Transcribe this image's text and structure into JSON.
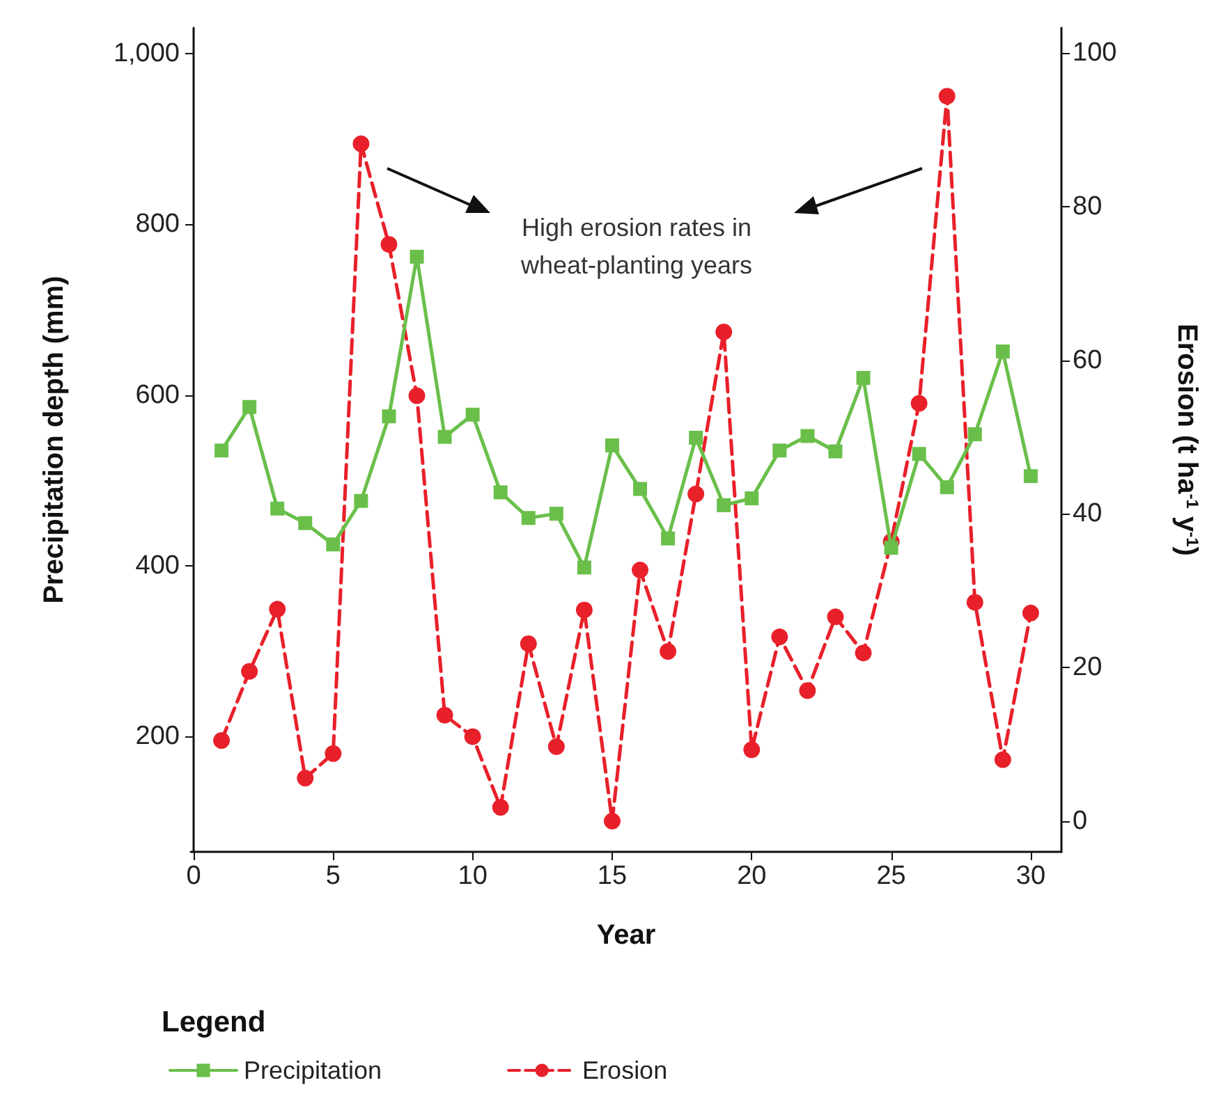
{
  "chart_data": {
    "type": "line",
    "xlabel": "Year",
    "ylabel": "Precipitation depth (mm)",
    "y2label": "Erosion (t ha$^{-1}$ y$^{-1}$)",
    "legend_title": "Legend",
    "legend": "bottom",
    "annotations": [
      "High erosion rates in\nwheat-planting years"
    ],
    "x": [
      1,
      2,
      3,
      4,
      5,
      6,
      7,
      8,
      9,
      10,
      11,
      12,
      13,
      14,
      15,
      16,
      17,
      18,
      19,
      20,
      21,
      22,
      23,
      24,
      25,
      26,
      27,
      28,
      29,
      30
    ],
    "series": [
      {
        "name": "Precipitation",
        "color": "#6abf4b",
        "marker": "square",
        "line_style": "solid",
        "values": [
          535,
          586,
          467,
          450,
          425,
          476,
          575,
          762,
          551,
          577,
          486,
          456,
          461,
          398,
          541,
          490,
          432,
          550,
          471,
          479,
          535,
          552,
          534,
          620,
          421,
          531,
          492,
          554,
          651,
          505
        ]
      },
      {
        "name": "Erosion",
        "color": "#e8202a",
        "marker": "circle",
        "line_style": "dashed",
        "axis": "y2",
        "values": [
          10.5,
          19.5,
          27.6,
          5.6,
          8.8,
          88.2,
          75.1,
          55.4,
          13.8,
          11.0,
          1.8,
          23.1,
          9.7,
          27.5,
          0,
          32.7,
          22.1,
          42.6,
          63.7,
          9.3,
          24.0,
          17.0,
          26.6,
          21.9,
          36.4,
          54.4,
          94.4,
          28.5,
          8.0,
          27.1
        ]
      }
    ],
    "xlim": [
      -0.1,
      31.1
    ],
    "xticks": [
      0,
      5,
      10,
      15,
      20,
      25,
      30
    ],
    "ylim": [
      65,
      1030
    ],
    "yticks": [
      200,
      400,
      600,
      800,
      {
        "value": 1000,
        "label": "1,000"
      }
    ],
    "y2lim": [
      -4,
      103.3
    ],
    "y2ticks": [
      0,
      20,
      40,
      60,
      80,
      100
    ],
    "grid": false
  }
}
